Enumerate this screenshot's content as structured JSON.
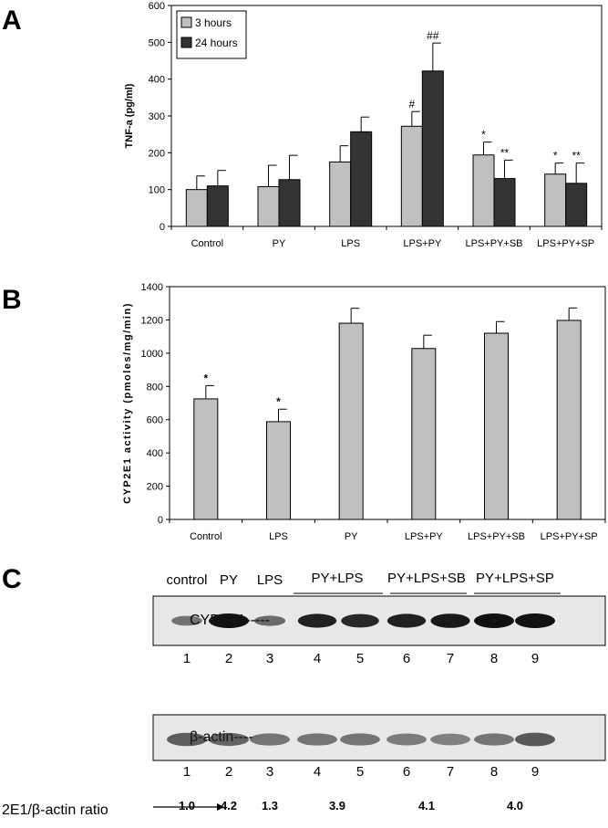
{
  "panels": {
    "a": {
      "letter": "A"
    },
    "b": {
      "letter": "B"
    },
    "c": {
      "letter": "C"
    }
  },
  "chart_data": [
    {
      "type": "bar",
      "panel": "A",
      "ylabel": "TNF-a (pg/ml)",
      "xlabel": "",
      "ylim": [
        0,
        600
      ],
      "yticks": [
        0,
        100,
        200,
        300,
        400,
        500,
        600
      ],
      "categories": [
        "Control",
        "PY",
        "LPS",
        "LPS+PY",
        "LPS+PY+SB",
        "LPS+PY+SP"
      ],
      "legend_position": "top-left",
      "series": [
        {
          "name": "3 hours",
          "color": "#c0c0c0",
          "values": [
            100,
            108,
            175,
            272,
            194,
            142
          ],
          "errors": [
            37,
            58,
            44,
            40,
            35,
            30
          ],
          "annotations": [
            "",
            "",
            "",
            "#",
            "*",
            "*"
          ]
        },
        {
          "name": "24 hours",
          "color": "#333333",
          "values": [
            110,
            127,
            257,
            422,
            130,
            117
          ],
          "errors": [
            42,
            66,
            40,
            76,
            50,
            55
          ],
          "annotations": [
            "",
            "",
            "",
            "##",
            "**",
            "**"
          ]
        }
      ]
    },
    {
      "type": "bar",
      "panel": "B",
      "ylabel": "CYP2E1 activity (pmoles/mg/min)",
      "xlabel": "",
      "ylim": [
        0,
        1400
      ],
      "yticks": [
        0,
        200,
        400,
        600,
        800,
        1000,
        1200,
        1400
      ],
      "categories": [
        "Control",
        "LPS",
        "PY",
        "LPS+PY",
        "LPS+PY+SB",
        "LPS+PY+SP"
      ],
      "series": [
        {
          "color": "#c0c0c0",
          "values": [
            725,
            588,
            1180,
            1028,
            1120,
            1197
          ],
          "errors": [
            80,
            75,
            90,
            80,
            70,
            75
          ],
          "annotations": [
            "*",
            "*",
            "",
            "",
            "",
            ""
          ]
        }
      ]
    }
  ],
  "blot": {
    "group_labels": [
      "control",
      "PY",
      "LPS",
      "PY+LPS",
      "PY+LPS+SB",
      "PY+LPS+SP"
    ],
    "cyp_label": "CYP2E1-----",
    "actin_label": "β-actin----",
    "lanes": [
      "1",
      "2",
      "3",
      "4",
      "5",
      "6",
      "7",
      "8",
      "9"
    ],
    "ratio_label": "2E1/β-actin ratio",
    "ratios": [
      "1.0",
      "4.2",
      "1.3",
      "3.9",
      "4.1",
      "4.0"
    ],
    "cyp_intensity": [
      0.35,
      1.0,
      0.4,
      0.9,
      0.85,
      0.9,
      0.95,
      1.0,
      1.0
    ],
    "actin_intensity": [
      0.75,
      0.7,
      0.55,
      0.55,
      0.55,
      0.5,
      0.45,
      0.55,
      0.8
    ]
  }
}
